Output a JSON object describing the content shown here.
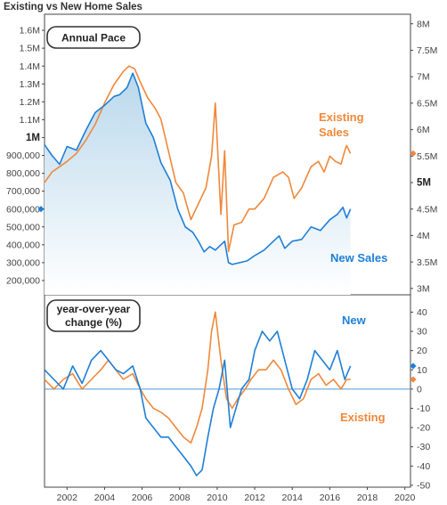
{
  "title": "Existing vs New Home Sales",
  "colors": {
    "new": "#1f7fd6",
    "existing": "#f0883a",
    "area_top": "#b9d8ec",
    "area_bottom": "#ffffff",
    "zero_line": "#4a9ad6",
    "frame": "#444444"
  },
  "chart_data": [
    {
      "type": "line",
      "panel_label": "Annual Pace",
      "x_range": [
        2000.8,
        2020.3
      ],
      "left_axis": {
        "range": [
          120000,
          1690000
        ],
        "ticks": [
          {
            "v": 200000,
            "t": "200,000"
          },
          {
            "v": 300000,
            "t": "300,000"
          },
          {
            "v": 400000,
            "t": "400,000"
          },
          {
            "v": 500000,
            "t": "500,000"
          },
          {
            "v": 600000,
            "t": "600,000"
          },
          {
            "v": 700000,
            "t": "700,000"
          },
          {
            "v": 800000,
            "t": "800,000"
          },
          {
            "v": 900000,
            "t": "900,000"
          },
          {
            "v": 1000000,
            "t": "1M",
            "bold": true
          },
          {
            "v": 1100000,
            "t": "1.1M"
          },
          {
            "v": 1200000,
            "t": "1.2M"
          },
          {
            "v": 1300000,
            "t": "1.3M"
          },
          {
            "v": 1400000,
            "t": "1.4M"
          },
          {
            "v": 1500000,
            "t": "1.5M"
          },
          {
            "v": 1600000,
            "t": "1.6M"
          }
        ]
      },
      "right_axis": {
        "range": [
          2880000,
          8180000
        ],
        "ticks": [
          {
            "v": 3000000,
            "t": "3M"
          },
          {
            "v": 3500000,
            "t": "3.5M"
          },
          {
            "v": 4000000,
            "t": "4M"
          },
          {
            "v": 4500000,
            "t": "4.5M"
          },
          {
            "v": 5000000,
            "t": "5M",
            "bold": true
          },
          {
            "v": 5500000,
            "t": "5.5M"
          },
          {
            "v": 6000000,
            "t": "6M"
          },
          {
            "v": 6500000,
            "t": "6.5M"
          },
          {
            "v": 7000000,
            "t": "7M"
          },
          {
            "v": 7500000,
            "t": "7.5M"
          },
          {
            "v": 8000000,
            "t": "8M"
          }
        ]
      },
      "series": [
        {
          "name": "New Sales",
          "axis": "left",
          "label_lines": [
            "New Sales"
          ],
          "latest": 600000,
          "x": [
            2000.8,
            2001.2,
            2001.6,
            2002.0,
            2002.5,
            2003.0,
            2003.5,
            2004.0,
            2004.5,
            2004.8,
            2005.2,
            2005.5,
            2005.8,
            2006.2,
            2006.6,
            2007.0,
            2007.5,
            2007.9,
            2008.3,
            2008.7,
            2009.0,
            2009.3,
            2009.6,
            2009.9,
            2010.2,
            2010.4,
            2010.6,
            2010.8,
            2011.2,
            2011.6,
            2012.0,
            2012.5,
            2013.0,
            2013.3,
            2013.6,
            2014.0,
            2014.5,
            2015.0,
            2015.5,
            2016.0,
            2016.4,
            2016.7,
            2016.9,
            2017.1
          ],
          "values": [
            960000,
            900000,
            850000,
            950000,
            930000,
            1040000,
            1140000,
            1180000,
            1230000,
            1240000,
            1280000,
            1360000,
            1280000,
            1080000,
            1000000,
            860000,
            760000,
            600000,
            500000,
            470000,
            420000,
            360000,
            390000,
            370000,
            400000,
            420000,
            300000,
            290000,
            300000,
            310000,
            340000,
            370000,
            420000,
            450000,
            380000,
            420000,
            430000,
            500000,
            480000,
            540000,
            570000,
            610000,
            550000,
            600000
          ]
        },
        {
          "name": "Existing Sales",
          "axis": "right",
          "label_lines": [
            "Existing",
            "Sales"
          ],
          "latest": 5550000,
          "x": [
            2000.8,
            2001.2,
            2001.6,
            2002.0,
            2002.5,
            2003.0,
            2003.5,
            2004.0,
            2004.5,
            2005.0,
            2005.3,
            2005.6,
            2005.9,
            2006.3,
            2006.7,
            2007.0,
            2007.4,
            2007.8,
            2008.2,
            2008.6,
            2009.0,
            2009.4,
            2009.7,
            2009.9,
            2010.2,
            2010.4,
            2010.6,
            2010.9,
            2011.3,
            2011.7,
            2012.0,
            2012.5,
            2013.0,
            2013.5,
            2013.8,
            2014.1,
            2014.5,
            2015.0,
            2015.4,
            2015.7,
            2016.0,
            2016.3,
            2016.6,
            2016.8,
            2016.9,
            2017.1
          ],
          "values": [
            5000000,
            5200000,
            5300000,
            5400000,
            5550000,
            5800000,
            6100000,
            6500000,
            6850000,
            7100000,
            7200000,
            7150000,
            6900000,
            6600000,
            6400000,
            6200000,
            5600000,
            5000000,
            4800000,
            4300000,
            4600000,
            4900000,
            5500000,
            6500000,
            4400000,
            5600000,
            3700000,
            4200000,
            4250000,
            4500000,
            4500000,
            4700000,
            5100000,
            5200000,
            5100000,
            4700000,
            4900000,
            5300000,
            5400000,
            5200000,
            5500000,
            5400000,
            5350000,
            5600000,
            5700000,
            5550000
          ]
        }
      ]
    },
    {
      "type": "line",
      "panel_label": "year-over-year change (%)",
      "panel_label_lines": [
        "year-over-year",
        "change (%)"
      ],
      "x_range": [
        2000.8,
        2020.3
      ],
      "y_range": [
        -51,
        49
      ],
      "x_ticks": [
        2002,
        2004,
        2006,
        2008,
        2010,
        2012,
        2014,
        2016,
        2018,
        2020
      ],
      "y_ticks": [
        -50,
        -40,
        -30,
        -20,
        -10,
        0,
        10,
        20,
        30,
        40
      ],
      "series": [
        {
          "name": "New",
          "label_lines": [
            "New"
          ],
          "latest": 12,
          "x": [
            2000.8,
            2001.3,
            2001.8,
            2002.3,
            2002.8,
            2003.3,
            2003.8,
            2004.2,
            2004.6,
            2005.0,
            2005.5,
            2005.9,
            2006.2,
            2006.6,
            2007.0,
            2007.4,
            2007.8,
            2008.2,
            2008.6,
            2008.9,
            2009.2,
            2009.5,
            2009.8,
            2010.1,
            2010.4,
            2010.7,
            2011.0,
            2011.3,
            2011.7,
            2012.0,
            2012.4,
            2012.8,
            2013.2,
            2013.6,
            2014.0,
            2014.4,
            2014.8,
            2015.2,
            2015.6,
            2016.0,
            2016.4,
            2016.8,
            2017.1
          ],
          "values": [
            10,
            5,
            0,
            12,
            3,
            15,
            20,
            15,
            10,
            8,
            12,
            0,
            -15,
            -20,
            -25,
            -25,
            -30,
            -35,
            -40,
            -45,
            -42,
            -25,
            -10,
            0,
            15,
            -20,
            -10,
            0,
            5,
            20,
            30,
            25,
            30,
            15,
            0,
            -5,
            5,
            20,
            15,
            10,
            20,
            5,
            12
          ]
        },
        {
          "name": "Existing",
          "label_lines": [
            "Existing"
          ],
          "latest": 5,
          "x": [
            2000.8,
            2001.3,
            2001.8,
            2002.3,
            2002.8,
            2003.3,
            2003.8,
            2004.2,
            2004.6,
            2005.0,
            2005.5,
            2005.9,
            2006.2,
            2006.6,
            2007.0,
            2007.4,
            2007.8,
            2008.2,
            2008.6,
            2008.9,
            2009.2,
            2009.5,
            2009.7,
            2009.9,
            2010.2,
            2010.5,
            2010.8,
            2011.1,
            2011.5,
            2011.8,
            2012.2,
            2012.6,
            2013.0,
            2013.4,
            2013.8,
            2014.2,
            2014.6,
            2015.0,
            2015.4,
            2015.8,
            2016.2,
            2016.6,
            2016.9,
            2017.1
          ],
          "values": [
            5,
            0,
            5,
            8,
            0,
            5,
            10,
            15,
            10,
            5,
            8,
            0,
            -5,
            -10,
            -12,
            -15,
            -20,
            -25,
            -28,
            -20,
            -10,
            10,
            30,
            40,
            15,
            -5,
            -10,
            -5,
            0,
            5,
            10,
            10,
            15,
            10,
            0,
            -8,
            -5,
            5,
            8,
            2,
            5,
            0,
            5,
            5
          ]
        }
      ]
    }
  ]
}
